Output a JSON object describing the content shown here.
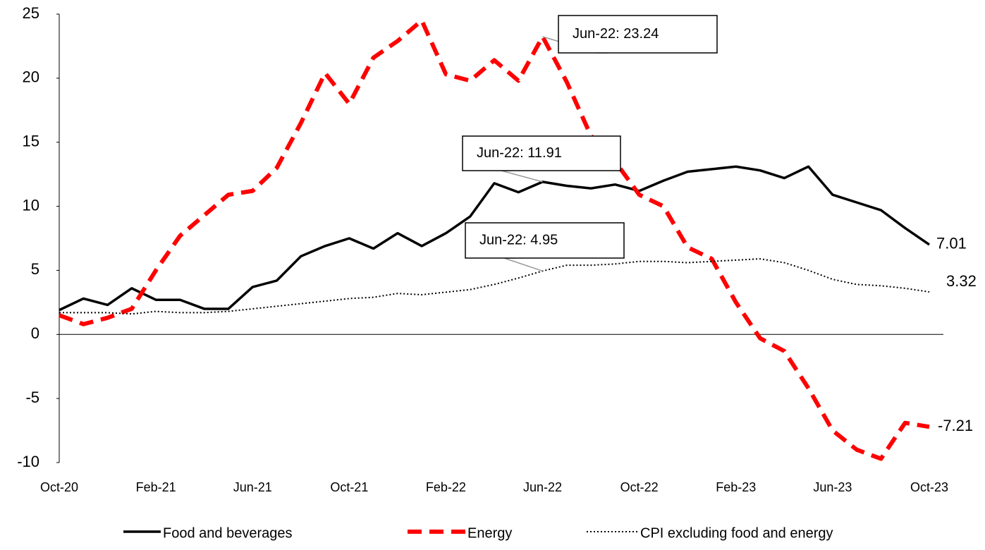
{
  "chart_data": {
    "type": "line",
    "categories": [
      "Oct-20",
      null,
      null,
      null,
      "Feb-21",
      null,
      null,
      null,
      "Jun-21",
      null,
      null,
      null,
      "Oct-21",
      null,
      null,
      null,
      "Feb-22",
      null,
      null,
      null,
      "Jun-22",
      null,
      null,
      null,
      "Oct-22",
      null,
      null,
      null,
      "Feb-23",
      null,
      null,
      null,
      "Jun-23",
      null,
      null,
      null,
      "Oct-23"
    ],
    "series": [
      {
        "name": "Food and beverages",
        "color": "#000000",
        "style": "solid",
        "values": [
          1.9,
          2.8,
          2.3,
          3.6,
          2.7,
          2.7,
          2.0,
          2.0,
          3.7,
          4.2,
          6.1,
          6.9,
          7.5,
          6.7,
          7.9,
          6.9,
          7.9,
          9.2,
          11.8,
          11.1,
          11.91,
          11.6,
          11.4,
          11.7,
          11.2,
          12.0,
          12.7,
          12.9,
          13.1,
          12.8,
          12.2,
          13.1,
          10.9,
          10.3,
          9.7,
          8.3,
          7.01
        ]
      },
      {
        "name": "Energy",
        "color": "#ff0000",
        "style": "dashed",
        "values": [
          1.5,
          0.8,
          1.3,
          2.0,
          5.0,
          7.7,
          9.3,
          10.9,
          11.2,
          13.0,
          16.5,
          20.4,
          18.0,
          21.6,
          22.9,
          24.5,
          20.3,
          19.8,
          21.4,
          19.8,
          23.24,
          19.7,
          15.5,
          13.5,
          10.9,
          10.0,
          6.8,
          5.9,
          2.5,
          -0.3,
          -1.3,
          -4.2,
          -7.5,
          -9.0,
          -9.7,
          -6.9,
          -7.21
        ]
      },
      {
        "name": "CPI excluding food and energy",
        "color": "#000000",
        "style": "dotted",
        "values": [
          1.7,
          1.7,
          1.7,
          1.6,
          1.8,
          1.7,
          1.7,
          1.8,
          2.0,
          2.2,
          2.4,
          2.6,
          2.8,
          2.9,
          3.2,
          3.1,
          3.3,
          3.5,
          3.9,
          4.4,
          4.95,
          5.4,
          5.4,
          5.5,
          5.7,
          5.7,
          5.6,
          5.7,
          5.8,
          5.9,
          5.6,
          5.0,
          4.3,
          3.9,
          3.8,
          3.6,
          3.32
        ]
      }
    ],
    "annotations": [
      "Jun-22: 23.24",
      "Jun-22: 11.91",
      "Jun-22: 4.95"
    ],
    "ylim": [
      -10,
      25
    ],
    "yticks": [
      -10,
      -5,
      0,
      5,
      10,
      15,
      20,
      25
    ],
    "legend": "bottom"
  }
}
